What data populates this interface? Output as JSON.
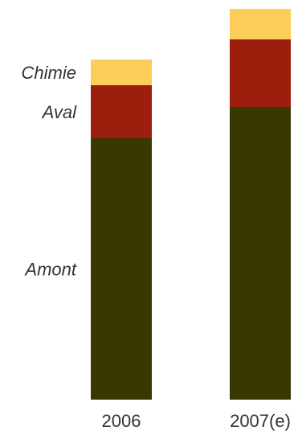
{
  "chart_data": {
    "type": "bar",
    "stacked": true,
    "categories": [
      "2006",
      "2007(e)"
    ],
    "series": [
      {
        "name": "Amont",
        "values": [
          325,
          364
        ],
        "color": "#393800"
      },
      {
        "name": "Aval",
        "values": [
          66,
          84
        ],
        "color": "#9b1f0c"
      },
      {
        "name": "Chimie",
        "values": [
          32,
          38
        ],
        "color": "#fccd58"
      }
    ],
    "ylim": [
      0,
      490
    ],
    "grid": false,
    "legend": "left, next to first bar"
  }
}
